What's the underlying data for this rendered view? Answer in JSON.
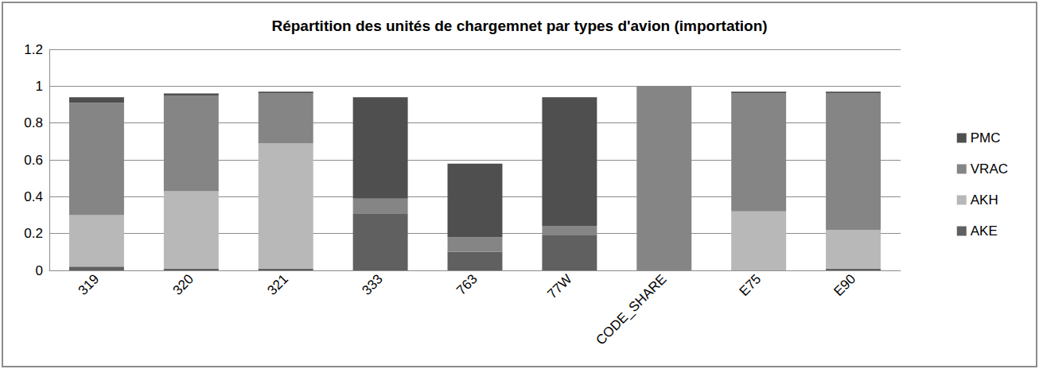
{
  "chart_data": {
    "type": "bar",
    "title": "Répartition des unités de chargemnet par types d'avion (importation)",
    "categories": [
      "319",
      "320",
      "321",
      "333",
      "763",
      "77W",
      "CODE_SHARE",
      "E75",
      "E90"
    ],
    "series": [
      {
        "name": "AKE",
        "color": "#606060",
        "values": [
          0.02,
          0.01,
          0.01,
          0.31,
          0.1,
          0.19,
          0,
          0,
          0.01
        ]
      },
      {
        "name": "AKH",
        "color": "#b8b8b8",
        "values": [
          0.28,
          0.42,
          0.68,
          0,
          0,
          0,
          0,
          0.32,
          0.21
        ]
      },
      {
        "name": "VRAC",
        "color": "#858585",
        "values": [
          0.61,
          0.52,
          0.27,
          0.08,
          0.08,
          0.05,
          1.0,
          0.64,
          0.74
        ]
      },
      {
        "name": "PMC",
        "color": "#4f4f4f",
        "values": [
          0.03,
          0.01,
          0.01,
          0.55,
          0.4,
          0.7,
          0,
          0.01,
          0.01
        ]
      }
    ],
    "ylim": [
      0,
      1.2
    ],
    "yticks": [
      0,
      0.2,
      0.4,
      0.6,
      0.8,
      1,
      1.2
    ],
    "stacked": true,
    "grid": true,
    "legend": "right"
  }
}
